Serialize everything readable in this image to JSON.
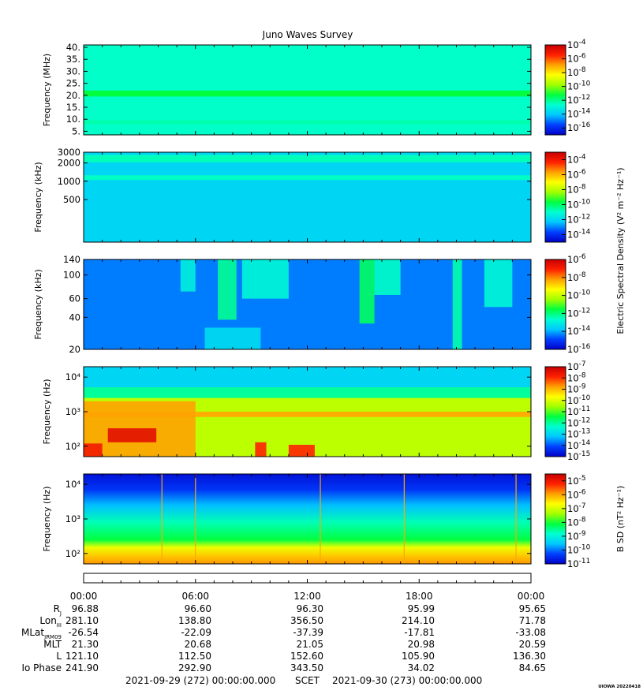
{
  "title": "Juno Waves Survey",
  "colors": {
    "colormap": [
      "#0000c8",
      "#0040ff",
      "#00c8ff",
      "#00ffd0",
      "#00ff40",
      "#a0ff00",
      "#ffff00",
      "#ffa000",
      "#ff2000",
      "#c80000"
    ]
  },
  "chart_data": [
    {
      "type": "heatmap",
      "name": "panel-1",
      "ylabel": "Frequency (MHz)",
      "yscale": "linear",
      "ylim": [
        3.5,
        41
      ],
      "yticks": [
        {
          "v": 40,
          "t": "40."
        },
        {
          "v": 35,
          "t": "35."
        },
        {
          "v": 30,
          "t": "30."
        },
        {
          "v": 25,
          "t": "25."
        },
        {
          "v": 20,
          "t": "20."
        },
        {
          "v": 15,
          "t": "15."
        },
        {
          "v": 10,
          "t": "10."
        },
        {
          "v": 5,
          "t": "5."
        }
      ],
      "colorbar": {
        "label": "",
        "range": [
          -17,
          -4
        ],
        "ticks": [
          -4,
          -6,
          -8,
          -10,
          -12,
          -14,
          -16
        ]
      },
      "background_log10": -12.6,
      "bands": [
        {
          "f": [
            19.5,
            22.0
          ],
          "log10": -11.2
        },
        {
          "f": [
            8.0,
            9.5
          ],
          "log10": -12.3
        }
      ]
    },
    {
      "type": "heatmap",
      "name": "panel-2",
      "ylabel": "Frequency (kHz)",
      "yscale": "log",
      "ylim": [
        100,
        3000
      ],
      "yticks": [
        {
          "v": 3000,
          "t": "3000"
        },
        {
          "v": 2000,
          "t": "2000"
        },
        {
          "v": 1000,
          "t": "1000"
        },
        {
          "v": 500,
          "t": "500"
        }
      ],
      "colorbar": {
        "label": "Electric Spectral Density (V² m⁻² Hz⁻¹)",
        "range": [
          -15,
          -3
        ],
        "ticks": [
          -4,
          -6,
          -8,
          -10,
          -12,
          -14
        ]
      },
      "background_log10": -12.0,
      "bands": [
        {
          "f": [
            2050,
            2700
          ],
          "log10": -10.8
        },
        {
          "f": [
            1050,
            1250
          ],
          "log10": -10.9
        }
      ]
    },
    {
      "type": "heatmap",
      "name": "panel-3",
      "ylabel": "Frequency (kHz)",
      "yscale": "log",
      "ylim": [
        20,
        140
      ],
      "yticks": [
        {
          "v": 140,
          "t": "140"
        },
        {
          "v": 100,
          "t": "100"
        },
        {
          "v": 60,
          "t": "60"
        },
        {
          "v": 40,
          "t": "40"
        },
        {
          "v": 20,
          "t": "20"
        }
      ],
      "colorbar": {
        "label": "",
        "range": [
          -16,
          -6
        ],
        "ticks": [
          -6,
          -8,
          -10,
          -12,
          -14,
          -16
        ]
      },
      "background_log10": -14.4,
      "bursts": [
        {
          "t": [
            5.2,
            6.0
          ],
          "f": [
            70,
            140
          ],
          "log10": -13.0
        },
        {
          "t": [
            7.2,
            8.2
          ],
          "f": [
            38,
            140
          ],
          "log10": -12.2
        },
        {
          "t": [
            8.5,
            11.0
          ],
          "f": [
            60,
            140
          ],
          "log10": -12.8
        },
        {
          "t": [
            14.8,
            15.6
          ],
          "f": [
            35,
            140
          ],
          "log10": -11.8
        },
        {
          "t": [
            15.6,
            17.0
          ],
          "f": [
            65,
            140
          ],
          "log10": -12.6
        },
        {
          "t": [
            19.8,
            20.3
          ],
          "f": [
            20,
            140
          ],
          "log10": -12.4
        },
        {
          "t": [
            21.5,
            23.0
          ],
          "f": [
            50,
            140
          ],
          "log10": -12.8
        },
        {
          "t": [
            6.5,
            9.5
          ],
          "f": [
            20,
            32
          ],
          "log10": -13.4
        }
      ]
    },
    {
      "type": "heatmap",
      "name": "panel-4",
      "ylabel": "Frequency (Hz)",
      "yscale": "log",
      "ylim": [
        50,
        20000
      ],
      "yticks": [
        {
          "v": 10000,
          "t": "10⁴"
        },
        {
          "v": 1000,
          "t": "10³"
        },
        {
          "v": 100,
          "t": "10²"
        }
      ],
      "colorbar": {
        "label": "",
        "range": [
          -15,
          -7
        ],
        "ticks": [
          -7,
          -8,
          -9,
          -10,
          -11,
          -12,
          -13,
          -14,
          -15
        ]
      },
      "background_log10": -10.3,
      "bands": [
        {
          "f": [
            5000,
            20000
          ],
          "log10": -13.0
        },
        {
          "f": [
            2500,
            5000
          ],
          "log10": -12.0
        },
        {
          "f": [
            700,
            1000
          ],
          "log10": -8.9
        }
      ],
      "bursts": [
        {
          "t": [
            0.0,
            6.0
          ],
          "f": [
            50,
            2000
          ],
          "log10": -8.8
        },
        {
          "t": [
            1.3,
            3.9
          ],
          "f": [
            130,
            330
          ],
          "log10": -7.4
        },
        {
          "t": [
            0.0,
            1.0
          ],
          "f": [
            50,
            120
          ],
          "log10": -7.7
        },
        {
          "t": [
            9.2,
            9.8
          ],
          "f": [
            50,
            130
          ],
          "log10": -7.9
        },
        {
          "t": [
            11.0,
            12.4
          ],
          "f": [
            50,
            110
          ],
          "log10": -7.9
        }
      ]
    },
    {
      "type": "heatmap",
      "name": "panel-5",
      "ylabel": "Frequency (Hz)",
      "yscale": "log",
      "ylim": [
        50,
        20000
      ],
      "yticks": [
        {
          "v": 10000,
          "t": "10⁴"
        },
        {
          "v": 1000,
          "t": "10³"
        },
        {
          "v": 100,
          "t": "10²"
        }
      ],
      "colorbar": {
        "label": "B SD (nT² Hz⁻¹)",
        "range": [
          -11,
          -4.5
        ],
        "ticks": [
          -5,
          -6,
          -7,
          -8,
          -9,
          -10,
          -11
        ]
      },
      "gradient": [
        {
          "f": 20000,
          "log10": -10.8
        },
        {
          "f": 7000,
          "log10": -10.4
        },
        {
          "f": 2500,
          "log10": -9.6
        },
        {
          "f": 800,
          "log10": -8.7
        },
        {
          "f": 250,
          "log10": -8.1
        },
        {
          "f": 150,
          "log10": -6.8
        },
        {
          "f": 80,
          "log10": -6.2
        },
        {
          "f": 50,
          "log10": -5.9
        }
      ],
      "spikes": [
        4.2,
        6.0,
        12.7,
        17.2,
        23.2
      ]
    }
  ],
  "time_axis": {
    "range_hours": [
      0,
      24
    ],
    "ticks": [
      {
        "h": 0,
        "t": "00:00"
      },
      {
        "h": 6,
        "t": "06:00"
      },
      {
        "h": 12,
        "t": "12:00"
      },
      {
        "h": 18,
        "t": "18:00"
      },
      {
        "h": 24,
        "t": "00:00"
      }
    ]
  },
  "ephemeris": {
    "labels": [
      {
        "main": "R",
        "sub": "J"
      },
      {
        "main": "Lon",
        "sub": "III"
      },
      {
        "main": "MLat",
        "sub": "JRM09"
      },
      {
        "main": "MLT",
        "sub": ""
      },
      {
        "main": "L",
        "sub": ""
      },
      {
        "main": "Io Phase",
        "sub": ""
      }
    ],
    "rows": [
      [
        "96.88",
        "96.60",
        "96.30",
        "95.99",
        "95.65"
      ],
      [
        "281.10",
        "138.80",
        "356.50",
        "214.10",
        "71.78"
      ],
      [
        "-26.54",
        "-22.09",
        "-37.39",
        "-17.81",
        "-33.08"
      ],
      [
        "21.30",
        "20.68",
        "21.05",
        "20.98",
        "20.59"
      ],
      [
        "121.10",
        "112.50",
        "152.60",
        "105.90",
        "136.30"
      ],
      [
        "241.90",
        "292.90",
        "343.50",
        "34.02",
        "84.65"
      ]
    ]
  },
  "footer": {
    "start": "2021-09-29 (272) 00:00:00.000",
    "scet": "SCET",
    "end": "2021-09-30 (273) 00:00:00.000",
    "credit": "UIOWA 20220418"
  }
}
